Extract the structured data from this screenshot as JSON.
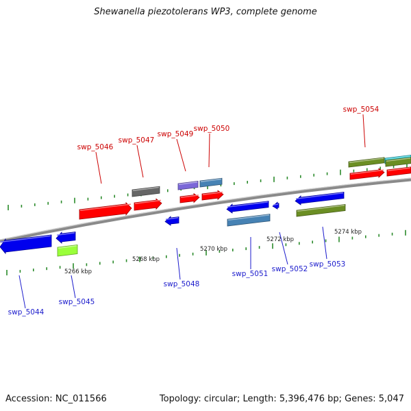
{
  "title": "Shewanella piezotolerans WP3, complete genome",
  "footer": {
    "accession": "Accession: NC_011566",
    "info": "Topology: circular; Length: 5,396,476 bp; Genes: 5,047"
  },
  "colors": {
    "red": "#ff0000",
    "blue": "#0000ee",
    "gray": "#666666",
    "lavender": "#7b68d8",
    "steelblue": "#4682b4",
    "olive": "#6b8e23",
    "lime": "#9aff3a",
    "cyan": "#22c7d4",
    "label_forward": "#cc0000",
    "label_reverse": "#1a1acc",
    "ticks": "#2a8a2a"
  },
  "scale_labels": [
    "5266 kbp",
    "5268 kbp",
    "5270 kbp",
    "5272 kbp",
    "5274 kbp"
  ],
  "genes": [
    {
      "id": "swp_5044",
      "label": "swp_5044"
    },
    {
      "id": "swp_5045",
      "label": "swp_5045"
    },
    {
      "id": "swp_5046",
      "label": "swp_5046"
    },
    {
      "id": "swp_5047",
      "label": "swp_5047"
    },
    {
      "id": "swp_5048",
      "label": "swp_5048"
    },
    {
      "id": "swp_5049",
      "label": "swp_5049"
    },
    {
      "id": "swp_5050",
      "label": "swp_5050"
    },
    {
      "id": "swp_5051",
      "label": "swp_5051"
    },
    {
      "id": "swp_5052",
      "label": "swp_5052"
    },
    {
      "id": "swp_5053",
      "label": "swp_5053"
    },
    {
      "id": "swp_5054",
      "label": "swp_5054"
    }
  ]
}
